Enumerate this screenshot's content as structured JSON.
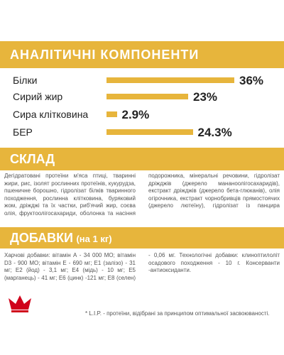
{
  "chart_data": {
    "type": "bar",
    "title": "АНАЛІТИЧНІ КОМПОНЕНТИ",
    "categories": [
      "Білки",
      "Сирий жир",
      "Сира клітковина",
      "БЕР"
    ],
    "values": [
      36,
      23,
      2.9,
      24.3
    ],
    "value_labels": [
      "36%",
      "23%",
      "2.9%",
      "24.3%"
    ],
    "color": "#e7b53c"
  },
  "composition": {
    "title": "СКЛАД",
    "text": "Дегідратовані протеїни м'яса птиці, тваринні жири, рис, ізолят рослинних протеїнів, кукурудза, пшеничне борошно, гідролізат білків тваринного походження, рослинна клітковина, буряковий жом, дріжджі та їх частки, риб'ячий жир, соєва олія, фруктоолігосахариди, оболонка та насіння подорожника, мінеральні речовини, гідролізат дріжджів (джерело манано­олігосахаридів), екстракт дріжджів (джерело бета-глюканів), олія огірочника, екстракт чорнобривців прямостоячих (джерело лютеїну), гідролізат із панцира ракоподібних (джерело глюкозаміну), гідролізат хрящової (джерело хондроїтину)."
  },
  "additives": {
    "title": "ДОБАВКИ",
    "subtitle": "(на 1 кг)",
    "text": "Харчові добавки: вітамін А - 34 000 МО; вітамін D3 - 900 МО; вітамін Е - 690 мг; Е1 (залізо) - 31 мг; Е2 (йод) - 3,1 мг; Е4 (мідь) - 10 мг; Е5 (марганець) - 41 мг; Е6 (цинк) -121 мг; Е8 (селен) - 0,06 мг. Технологічні добавки: клиноптилоліт осадового походження - 10 г. Консерванти -антиоксиданти."
  },
  "footnote": "* L.I.P. - протеїни, відібрані за принципом оптимальної засвоюваності."
}
